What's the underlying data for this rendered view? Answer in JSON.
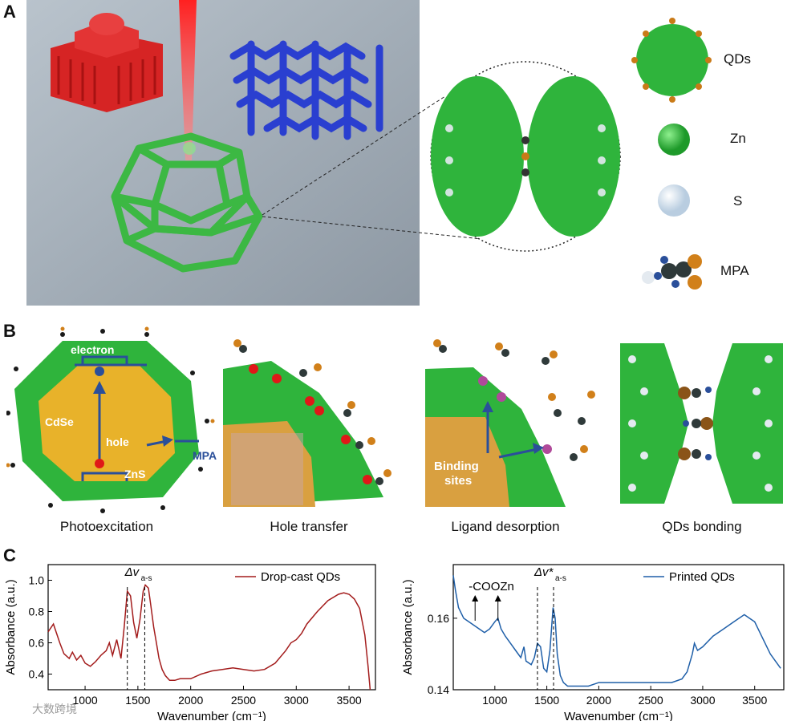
{
  "panels": {
    "a": {
      "letter": "A",
      "legend": {
        "qds": "QDs",
        "zn": "Zn",
        "s": "S",
        "mpa": "MPA"
      }
    },
    "b": {
      "letter": "B",
      "labels": {
        "electron": "electron",
        "cdse": "CdSe",
        "hole": "hole",
        "zns": "ZnS",
        "mpa": "MPA",
        "binding": "Binding",
        "sites": "sites"
      },
      "captions": [
        "Photoexcitation",
        "Hole transfer",
        "Ligand desorption",
        "QDs bonding"
      ]
    },
    "c": {
      "letter": "C"
    }
  },
  "colors": {
    "zn": "#2fb43c",
    "s": "#e4eaf0",
    "cdse": "#e8b22a",
    "dropcast": "#a31c1c",
    "printed": "#1f5fa8",
    "mpa_blue": "#2a4f9a",
    "red_atom": "#e01818"
  },
  "watermark": "大数跨境",
  "chart_data": [
    {
      "type": "line",
      "xlabel": "Wavenumber (cm⁻¹)",
      "ylabel": "Absorbance (a.u.)",
      "xlim": [
        650,
        3750
      ],
      "ylim": [
        0.3,
        1.1
      ],
      "xticks": [
        1000,
        1500,
        2000,
        2500,
        3000,
        3500
      ],
      "yticks": [
        0.4,
        0.6,
        0.8,
        1.0
      ],
      "ytick_labels": [
        "0.4",
        "0.6",
        "0.8",
        "1.0"
      ],
      "legend": "top-right",
      "annotation": {
        "text": "Δv",
        "sub": "a-s",
        "lines_x": [
          1400,
          1565
        ]
      },
      "series": [
        {
          "name": "Drop-cast QDs",
          "x": [
            650,
            700,
            760,
            800,
            850,
            880,
            920,
            960,
            1000,
            1050,
            1100,
            1150,
            1200,
            1230,
            1260,
            1300,
            1340,
            1370,
            1400,
            1430,
            1460,
            1490,
            1520,
            1550,
            1570,
            1600,
            1620,
            1650,
            1680,
            1700,
            1730,
            1760,
            1800,
            1850,
            1900,
            1950,
            2000,
            2100,
            2200,
            2300,
            2400,
            2500,
            2600,
            2700,
            2800,
            2900,
            2950,
            3000,
            3050,
            3100,
            3200,
            3300,
            3400,
            3450,
            3500,
            3550,
            3600,
            3650,
            3680,
            3700
          ],
          "y": [
            0.67,
            0.72,
            0.6,
            0.53,
            0.5,
            0.54,
            0.49,
            0.52,
            0.47,
            0.45,
            0.48,
            0.52,
            0.55,
            0.6,
            0.52,
            0.62,
            0.5,
            0.7,
            0.93,
            0.9,
            0.73,
            0.63,
            0.75,
            0.93,
            0.97,
            0.95,
            0.85,
            0.7,
            0.58,
            0.5,
            0.43,
            0.39,
            0.36,
            0.36,
            0.37,
            0.37,
            0.37,
            0.4,
            0.42,
            0.43,
            0.44,
            0.43,
            0.42,
            0.43,
            0.47,
            0.55,
            0.6,
            0.62,
            0.66,
            0.72,
            0.8,
            0.87,
            0.91,
            0.92,
            0.91,
            0.88,
            0.82,
            0.65,
            0.45,
            0.3
          ]
        }
      ]
    },
    {
      "type": "line",
      "xlabel": "Wavenumber (cm⁻¹)",
      "ylabel": "Absorbance (a.u.)",
      "xlim": [
        600,
        3780
      ],
      "ylim": [
        0.14,
        0.175
      ],
      "xticks": [
        1000,
        1500,
        2000,
        2500,
        3000,
        3500
      ],
      "yticks": [
        0.14,
        0.16
      ],
      "ytick_labels": [
        "0.14",
        "0.16"
      ],
      "legend": "top-right",
      "annotations": [
        {
          "text": "-COOZn",
          "arrows_x": [
            810,
            1030
          ]
        },
        {
          "text": "Δv*",
          "sub": "a-s",
          "lines_x": [
            1410,
            1565
          ]
        }
      ],
      "series": [
        {
          "name": "Printed QDs",
          "x": [
            600,
            620,
            650,
            700,
            750,
            800,
            850,
            900,
            950,
            1000,
            1030,
            1060,
            1100,
            1150,
            1200,
            1250,
            1280,
            1300,
            1350,
            1380,
            1410,
            1440,
            1470,
            1500,
            1530,
            1560,
            1580,
            1600,
            1630,
            1660,
            1700,
            1750,
            1800,
            1900,
            2000,
            2100,
            2200,
            2300,
            2400,
            2500,
            2600,
            2700,
            2800,
            2850,
            2900,
            2920,
            2950,
            3000,
            3100,
            3200,
            3300,
            3400,
            3450,
            3500,
            3550,
            3600,
            3650,
            3700,
            3750
          ],
          "y": [
            0.172,
            0.168,
            0.163,
            0.16,
            0.159,
            0.158,
            0.157,
            0.156,
            0.157,
            0.159,
            0.16,
            0.157,
            0.155,
            0.153,
            0.151,
            0.149,
            0.152,
            0.148,
            0.147,
            0.149,
            0.153,
            0.152,
            0.146,
            0.145,
            0.151,
            0.163,
            0.16,
            0.15,
            0.144,
            0.142,
            0.141,
            0.141,
            0.141,
            0.141,
            0.142,
            0.142,
            0.142,
            0.142,
            0.142,
            0.142,
            0.142,
            0.142,
            0.143,
            0.145,
            0.15,
            0.153,
            0.151,
            0.152,
            0.155,
            0.157,
            0.159,
            0.161,
            0.16,
            0.159,
            0.156,
            0.153,
            0.15,
            0.148,
            0.146
          ]
        }
      ]
    }
  ]
}
